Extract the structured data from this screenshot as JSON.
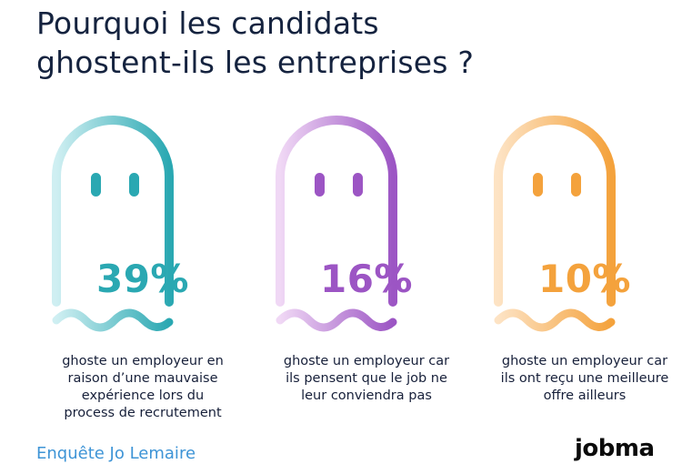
{
  "title": {
    "line1": "Pourquoi les candidats",
    "line2": "ghostent-ils les entreprises ?"
  },
  "chart_data": {
    "type": "infographic-percentages",
    "title": "Pourquoi les candidats ghostent-ils les entreprises ?",
    "unit": "%",
    "items": [
      {
        "value": 39,
        "label": "39%",
        "caption": [
          "ghoste un employeur en",
          "raison d’une mauvaise",
          "expérience lors du",
          "process de recrutement"
        ],
        "color": "#2aa8b2",
        "color_light": "#cfeff2"
      },
      {
        "value": 16,
        "label": "16%",
        "caption": [
          "ghoste un employeur car",
          "ils pensent que le job ne",
          "leur conviendra pas"
        ],
        "color": "#9c55c4",
        "color_light": "#f0d8f5"
      },
      {
        "value": 10,
        "label": "10%",
        "caption": [
          "ghoste un employeur car",
          "ils ont reçu une meilleure",
          "offre ailleurs"
        ],
        "color": "#f4a23c",
        "color_light": "#fde3c4"
      }
    ]
  },
  "footer": {
    "source_text": "Enquête Jo Lemaire",
    "logo_text": "jobma"
  }
}
